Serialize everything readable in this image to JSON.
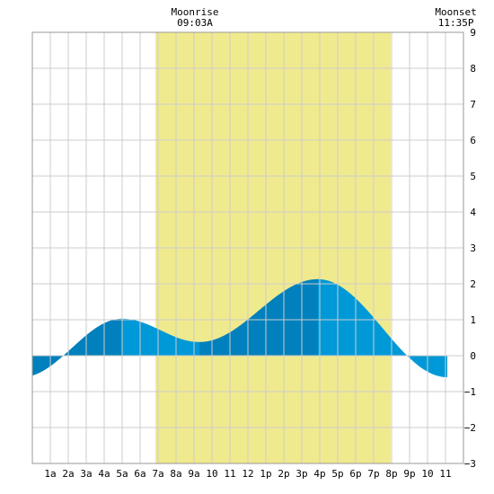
{
  "chart_data": {
    "type": "area",
    "title": "",
    "xlabel": "",
    "ylabel": "",
    "xlim": [
      0,
      24
    ],
    "ylim": [
      -3,
      9
    ],
    "y_ticks": [
      -3,
      -2,
      -1,
      0,
      1,
      2,
      3,
      4,
      5,
      6,
      7,
      8,
      9
    ],
    "x_ticks": [
      {
        "hour": 1,
        "label": "1a"
      },
      {
        "hour": 2,
        "label": "2a"
      },
      {
        "hour": 3,
        "label": "3a"
      },
      {
        "hour": 4,
        "label": "4a"
      },
      {
        "hour": 5,
        "label": "5a"
      },
      {
        "hour": 6,
        "label": "6a"
      },
      {
        "hour": 7,
        "label": "7a"
      },
      {
        "hour": 8,
        "label": "8a"
      },
      {
        "hour": 9,
        "label": "9a"
      },
      {
        "hour": 10,
        "label": "10"
      },
      {
        "hour": 11,
        "label": "11"
      },
      {
        "hour": 12,
        "label": "12"
      },
      {
        "hour": 13,
        "label": "1p"
      },
      {
        "hour": 14,
        "label": "2p"
      },
      {
        "hour": 15,
        "label": "3p"
      },
      {
        "hour": 16,
        "label": "4p"
      },
      {
        "hour": 17,
        "label": "5p"
      },
      {
        "hour": 18,
        "label": "6p"
      },
      {
        "hour": 19,
        "label": "7p"
      },
      {
        "hour": 20,
        "label": "8p"
      },
      {
        "hour": 21,
        "label": "9p"
      },
      {
        "hour": 22,
        "label": "10"
      },
      {
        "hour": 23,
        "label": "11"
      }
    ],
    "grid": true,
    "daylight": {
      "start": 6.85,
      "end": 19.95,
      "color": "#f0ea8e"
    },
    "moon_events": [
      {
        "name": "Moonrise",
        "time": "09:03A",
        "hour": 9.05
      },
      {
        "name": "Moonset",
        "time": "11:35P",
        "hour": 23.58
      }
    ],
    "tide_extremes": [
      {
        "hour": -0.6,
        "height": -0.6
      },
      {
        "hour": 5.0,
        "height": 1.03
      },
      {
        "hour": 9.3,
        "height": 0.38
      },
      {
        "hour": 15.9,
        "height": 2.13
      },
      {
        "hour": 23.1,
        "height": -0.6
      }
    ],
    "series": [
      {
        "values_fn": "cosine interpolation between tide_extremes"
      }
    ],
    "colors": {
      "tide_light": "#0099d8",
      "tide_dark": "#0080bd",
      "grid": "#cccccc",
      "background": "#ffffff"
    }
  }
}
